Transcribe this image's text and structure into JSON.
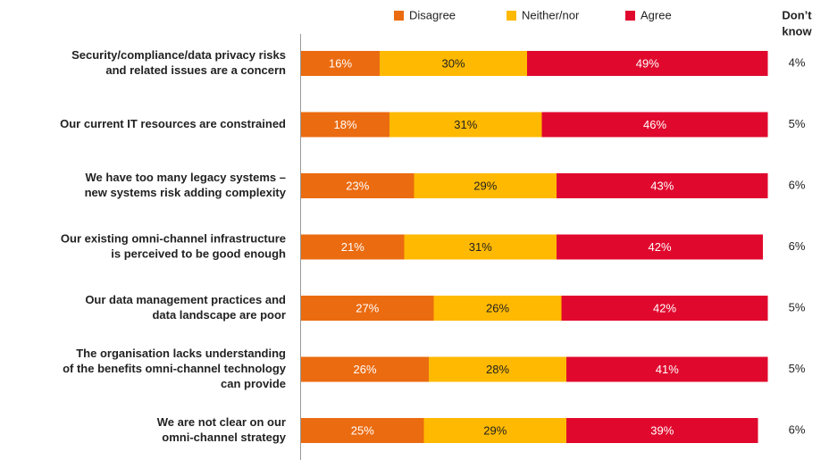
{
  "chart_data": {
    "type": "stacked-bar-horizontal",
    "categories": [
      [
        "Security/compliance/data privacy risks",
        "and related issues are a concern"
      ],
      [
        "Our current IT resources are constrained"
      ],
      [
        "We have too many legacy systems –",
        "new systems risk adding complexity"
      ],
      [
        "Our existing omni-channel infrastructure",
        "is perceived to be good enough"
      ],
      [
        "Our data management practices and",
        "data landscape are poor"
      ],
      [
        "The organisation lacks understanding",
        "of the benefits omni-channel technology",
        "can provide"
      ],
      [
        "We are not clear on our",
        "omni-channel strategy"
      ]
    ],
    "series": [
      {
        "name": "Disagree",
        "color": "#eb6b10",
        "text_color": "#ffffff",
        "values": [
          16,
          18,
          23,
          21,
          27,
          26,
          25
        ],
        "value_labels": [
          "16%",
          "18%",
          "23%",
          "21%",
          "27%",
          "26%",
          "25%"
        ]
      },
      {
        "name": "Neither/nor",
        "color": "#ffb900",
        "text_color": "#222222",
        "values": [
          30,
          31,
          29,
          31,
          26,
          28,
          29
        ],
        "value_labels": [
          "30%",
          "31%",
          "29%",
          "31%",
          "26%",
          "28%",
          "29%"
        ]
      },
      {
        "name": "Agree",
        "color": "#e0092d",
        "text_color": "#ffffff",
        "values": [
          49,
          46,
          43,
          42,
          42,
          41,
          39
        ],
        "value_labels": [
          "49%",
          "46%",
          "43%",
          "42%",
          "42%",
          "41%",
          "39%"
        ]
      }
    ],
    "dont_know": {
      "label": [
        "Don’t",
        "know"
      ],
      "values": [
        4,
        5,
        6,
        6,
        5,
        5,
        6
      ],
      "value_labels": [
        "4%",
        "5%",
        "6%",
        "6%",
        "5%",
        "5%",
        "6%"
      ]
    }
  }
}
